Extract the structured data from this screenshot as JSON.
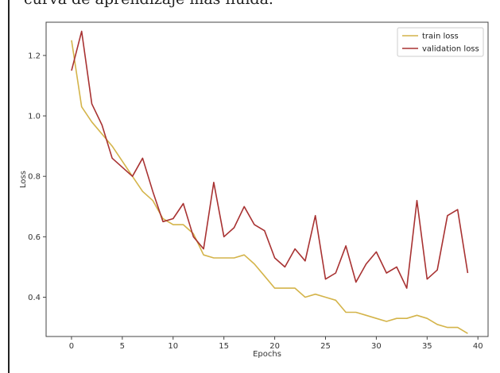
{
  "page_text": {
    "cut_heading": "curva de aprendizaje más fluida."
  },
  "chart_data": {
    "type": "line",
    "title": "",
    "xlabel": "Epochs",
    "ylabel": "Loss",
    "xlim": [
      -2.5,
      41
    ],
    "ylim": [
      0.27,
      1.31
    ],
    "xticks": [
      0,
      5,
      10,
      15,
      20,
      25,
      30,
      35,
      40
    ],
    "yticks": [
      0.4,
      0.6,
      0.8,
      1.0,
      1.2
    ],
    "ytick_labels": [
      "0.4",
      "0.6",
      "0.8",
      "1.0",
      "1.2"
    ],
    "grid": false,
    "legend_position": "top-right",
    "x": [
      0,
      1,
      2,
      3,
      4,
      5,
      6,
      7,
      8,
      9,
      10,
      11,
      12,
      13,
      14,
      15,
      16,
      17,
      18,
      19,
      20,
      21,
      22,
      23,
      24,
      25,
      26,
      27,
      28,
      29,
      30,
      31,
      32,
      33,
      34,
      35,
      36,
      37,
      38,
      39
    ],
    "series": [
      {
        "name": "train loss",
        "color": "#d4b44a",
        "values": [
          1.25,
          1.03,
          0.98,
          0.94,
          0.9,
          0.85,
          0.8,
          0.75,
          0.72,
          0.66,
          0.64,
          0.64,
          0.61,
          0.54,
          0.53,
          0.53,
          0.53,
          0.54,
          0.51,
          0.47,
          0.43,
          0.43,
          0.43,
          0.4,
          0.41,
          0.4,
          0.39,
          0.35,
          0.35,
          0.34,
          0.33,
          0.32,
          0.33,
          0.33,
          0.34,
          0.33,
          0.31,
          0.3,
          0.3,
          0.28
        ]
      },
      {
        "name": "validation loss",
        "color": "#a83232",
        "values": [
          1.15,
          1.28,
          1.04,
          0.97,
          0.86,
          0.83,
          0.8,
          0.86,
          0.75,
          0.65,
          0.66,
          0.71,
          0.6,
          0.56,
          0.78,
          0.6,
          0.63,
          0.7,
          0.64,
          0.62,
          0.53,
          0.5,
          0.56,
          0.52,
          0.67,
          0.46,
          0.48,
          0.57,
          0.45,
          0.51,
          0.55,
          0.48,
          0.5,
          0.43,
          0.72,
          0.46,
          0.49,
          0.67,
          0.69,
          0.48
        ]
      }
    ]
  }
}
